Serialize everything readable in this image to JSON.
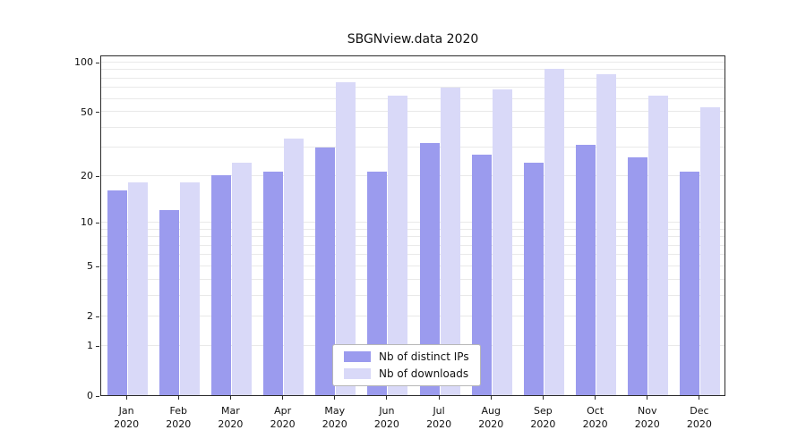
{
  "chart_data": {
    "type": "bar",
    "title": "SBGNview.data 2020",
    "categories": [
      "Jan",
      "Feb",
      "Mar",
      "Apr",
      "May",
      "Jun",
      "Jul",
      "Aug",
      "Sep",
      "Oct",
      "Nov",
      "Dec"
    ],
    "year_label": "2020",
    "series": [
      {
        "name": "Nb of distinct IPs",
        "color": "#9b9bee",
        "values": [
          16,
          12,
          20,
          21,
          30,
          21,
          32,
          27,
          24,
          31,
          26,
          21
        ]
      },
      {
        "name": "Nb of downloads",
        "color": "#d9d9f8",
        "values": [
          18,
          18,
          24,
          34,
          75,
          62,
          70,
          68,
          91,
          84,
          62,
          53
        ]
      }
    ],
    "yscale": "log1p",
    "ylim": [
      0,
      111
    ],
    "yticks": [
      0,
      1,
      2,
      5,
      10,
      20,
      50,
      100
    ],
    "grid_values": [
      1,
      2,
      3,
      4,
      5,
      6,
      7,
      8,
      9,
      10,
      20,
      30,
      40,
      50,
      60,
      70,
      80,
      90,
      100
    ],
    "grid": "horizontal",
    "legend_position": "lower center",
    "xlabel": "",
    "ylabel": ""
  }
}
